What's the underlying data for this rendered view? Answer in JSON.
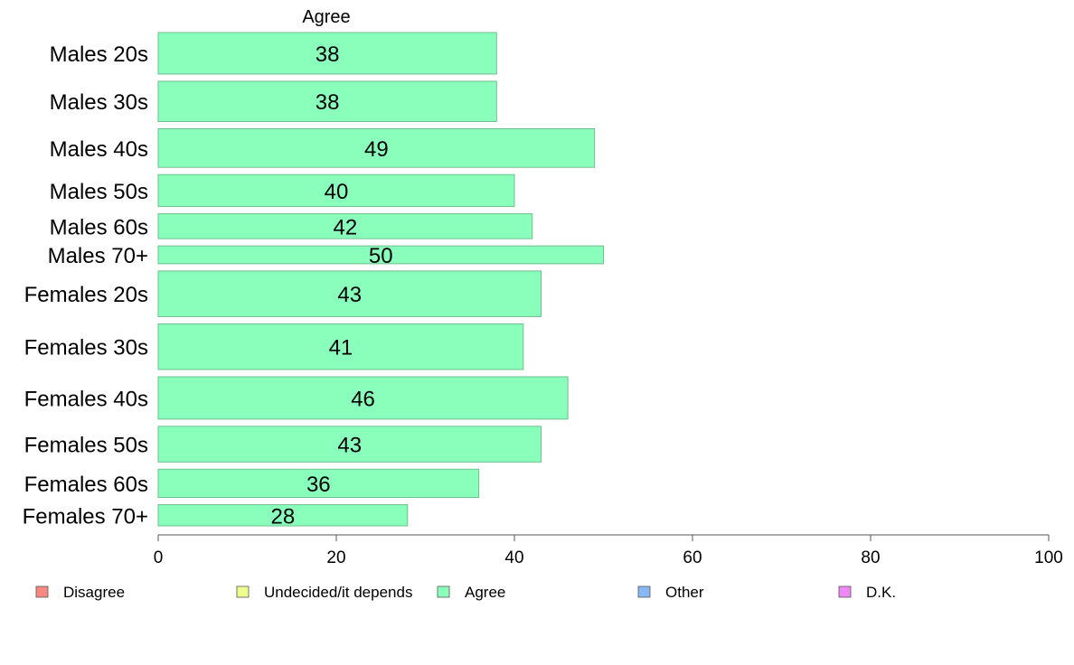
{
  "chart_data": {
    "type": "bar",
    "orientation": "horizontal",
    "panel_title": "Agree",
    "categories": [
      "Males 20s",
      "Males 30s",
      "Males 40s",
      "Males 50s",
      "Males 60s",
      "Males 70+",
      "Females 20s",
      "Females 30s",
      "Females 40s",
      "Females 50s",
      "Females 60s",
      "Females 70+"
    ],
    "relative_widths": [
      1.0,
      0.97,
      0.93,
      0.77,
      0.6,
      0.43,
      1.1,
      1.1,
      1.02,
      0.86,
      0.68,
      0.51
    ],
    "series": [
      {
        "name": "Agree",
        "color": "#8affbb",
        "values": [
          38,
          38,
          49,
          40,
          42,
          50,
          43,
          41,
          46,
          43,
          36,
          28
        ]
      }
    ],
    "value_labels": [
      "38",
      "38",
      "49",
      "40",
      "42",
      "50",
      "43",
      "41",
      "46",
      "43",
      "36",
      "28"
    ],
    "xlim": [
      0,
      100
    ],
    "xticks": [
      0,
      20,
      40,
      60,
      80,
      100
    ],
    "xtick_labels": [
      "0",
      "20",
      "40",
      "60",
      "80",
      "100"
    ],
    "grid": false,
    "legend": {
      "placement": "bottom",
      "entries": [
        {
          "label": "Disagree",
          "color": "#fa8882"
        },
        {
          "label": "Undecided/it depends",
          "color": "#eefd8b"
        },
        {
          "label": "Agree",
          "color": "#8affbb"
        },
        {
          "label": "Other",
          "color": "#88b7f5"
        },
        {
          "label": "D.K.",
          "color": "#ee88f5"
        }
      ]
    },
    "bar_border_color": "#6fbf8e",
    "axis_color": "#555555"
  }
}
